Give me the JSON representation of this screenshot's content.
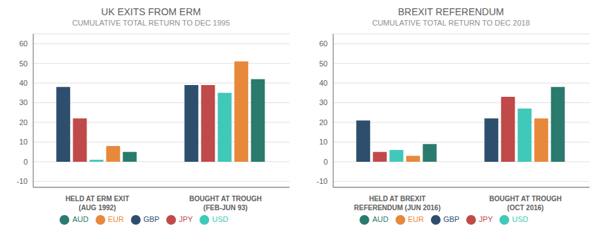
{
  "chart_data": [
    {
      "type": "bar",
      "title": "UK EXITS FROM ERM",
      "subtitle": "CUMULATIVE TOTAL RETURN TO DEC 1995",
      "categories": [
        "HELD AT ERM EXIT\n(AUG 1992)",
        "BOUGHT AT TROUGH\n(FEB-JUN 93)"
      ],
      "series": [
        {
          "name": "GBP",
          "color": "#2e4e6e",
          "values": [
            38,
            39
          ]
        },
        {
          "name": "JPY",
          "color": "#c04a4a",
          "values": [
            22,
            39
          ]
        },
        {
          "name": "USD",
          "color": "#40c8b8",
          "values": [
            1,
            35
          ]
        },
        {
          "name": "EUR",
          "color": "#e8883a",
          "values": [
            8,
            51
          ]
        },
        {
          "name": "AUD",
          "color": "#2a7a6e",
          "values": [
            5,
            42
          ]
        }
      ],
      "ylim": [
        -13,
        65
      ],
      "yticks": [
        -10,
        0,
        10,
        20,
        30,
        40,
        50,
        60
      ],
      "grid": true,
      "legend": "bottom"
    },
    {
      "type": "bar",
      "title": "BREXIT REFERENDUM",
      "subtitle": "CUMULATIVE TOTAL RETURN TO DEC 2018",
      "categories": [
        "HELD AT BREXIT\nREFERENDUM (JUN 2016)",
        "BOUGHT AT TROUGH\n(OCT 2016)"
      ],
      "series": [
        {
          "name": "GBP",
          "color": "#2e4e6e",
          "values": [
            21,
            22
          ]
        },
        {
          "name": "JPY",
          "color": "#c04a4a",
          "values": [
            5,
            33
          ]
        },
        {
          "name": "USD",
          "color": "#40c8b8",
          "values": [
            6,
            27
          ]
        },
        {
          "name": "EUR",
          "color": "#e8883a",
          "values": [
            3,
            22
          ]
        },
        {
          "name": "AUD",
          "color": "#2a7a6e",
          "values": [
            9,
            38
          ]
        }
      ],
      "ylim": [
        -13,
        65
      ],
      "yticks": [
        -10,
        0,
        10,
        20,
        30,
        40,
        50,
        60
      ],
      "grid": true,
      "legend": "bottom"
    }
  ]
}
